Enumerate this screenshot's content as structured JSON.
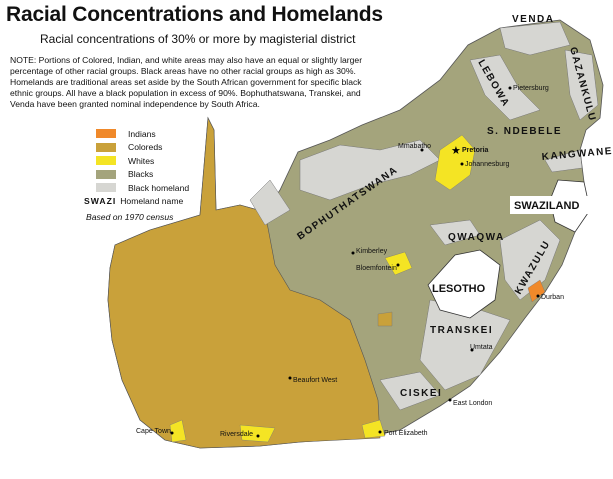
{
  "title": "Racial Concentrations and Homelands",
  "subtitle": "Racial concentrations of 30% or more by magisterial district",
  "note": "NOTE: Portions of Colored, Indian, and white areas may also have an equal or slightly larger percentage of other racial groups. Black areas have no other racial groups as high as 30%. Homelands are traditional areas set aside by the South African government for specific black ethnic groups. All have a black population in excess of 90%. Bophuthatswana, Transkei, and Venda have been granted nominal independence by South Africa.",
  "legend": {
    "items": [
      {
        "label": "Indians",
        "color": "#f0892a"
      },
      {
        "label": "Coloreds",
        "color": "#c9a13a"
      },
      {
        "label": "Whites",
        "color": "#f4e424"
      },
      {
        "label": "Blacks",
        "color": "#a4a47c"
      },
      {
        "label": "Black homeland",
        "color": "#d6d6d2"
      }
    ],
    "swazi_sample": "SWAZI",
    "swazi_desc": "Homeland name",
    "census": "Based on 1970 census"
  },
  "map": {
    "homelands": [
      "VENDA",
      "GAZANKULU",
      "LEBOWA",
      "S. NDEBELE",
      "KANGWANE",
      "BOPHUTHATSWANA",
      "QWAQWA",
      "KWAZULU",
      "TRANSKEI",
      "CISKEI"
    ],
    "countries": [
      "SWAZILAND",
      "LESOTHO"
    ],
    "cities": [
      "Pietersburg",
      "Pretoria",
      "Johannesburg",
      "Mmabatho",
      "Kimberley",
      "Bloemfontein",
      "Durban",
      "Umtata",
      "East London",
      "Port Elizabeth",
      "Beaufort West",
      "Cape Town",
      "Riversdale"
    ]
  }
}
